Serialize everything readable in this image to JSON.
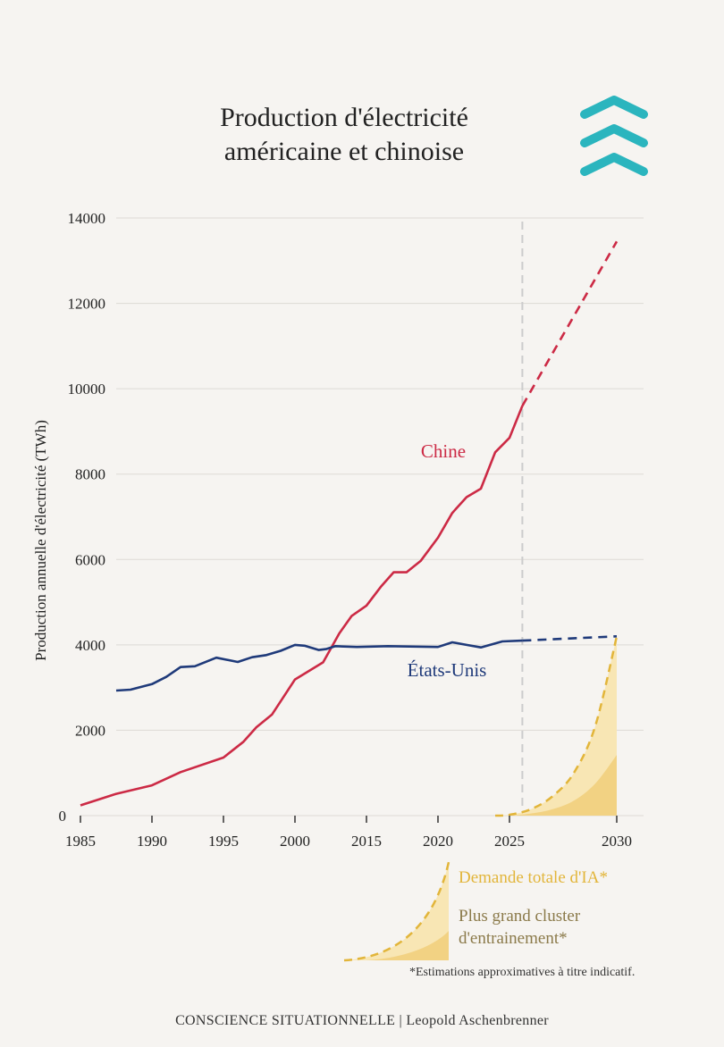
{
  "title_line1": "Production d'électricité",
  "title_line2": "américaine et chinoise",
  "logo_icon": "triple-chevron-up-icon",
  "footnote": "*Estimations approximatives à titre indicatif.",
  "footer": "CONSCIENCE SITUATIONNELLE | Leopold Aschenbrenner",
  "colors": {
    "china": "#cc2a45",
    "usa": "#1f3a7a",
    "ai": "#e2b53a",
    "ai_fill_light": "#f8e6b4",
    "ai_fill_dark": "#f2d283",
    "logo": "#2bb5be",
    "grid": "#dddad5",
    "divider": "#cccccc"
  },
  "chart_data": {
    "type": "line",
    "ylabel": "Production annuelle d'électricité (TWh)",
    "xlabel": "",
    "ylim": [
      0,
      14000
    ],
    "yticks": [
      0,
      2000,
      4000,
      6000,
      8000,
      10000,
      12000,
      14000
    ],
    "xticks": [
      1985,
      1990,
      1995,
      2000,
      2015,
      2020,
      2025,
      2030
    ],
    "grid": true,
    "projection_start": 2025.6,
    "series": [
      {
        "name": "Chine",
        "key": "china",
        "values": [
          [
            1985,
            240
          ],
          [
            1987.5,
            510
          ],
          [
            1990,
            710
          ],
          [
            1992,
            1020
          ],
          [
            1995,
            1360
          ],
          [
            1996.4,
            1730
          ],
          [
            1997.3,
            2070
          ],
          [
            1998.4,
            2370
          ],
          [
            2000,
            3190
          ],
          [
            2005.9,
            3590
          ],
          [
            2009.3,
            4270
          ],
          [
            2011.9,
            4680
          ],
          [
            2015,
            4920
          ],
          [
            2016,
            5360
          ],
          [
            2016.9,
            5700
          ],
          [
            2017.8,
            5700
          ],
          [
            2018.8,
            5970
          ],
          [
            2020,
            6510
          ],
          [
            2021,
            7090
          ],
          [
            2022,
            7460
          ],
          [
            2023,
            7660
          ],
          [
            2024,
            8510
          ],
          [
            2025,
            8850
          ],
          [
            2025.6,
            9600
          ]
        ],
        "projection": [
          [
            2025.6,
            9600
          ],
          [
            2030,
            13450
          ]
        ]
      },
      {
        "name": "États-Unis",
        "key": "usa",
        "values": [
          [
            1987.5,
            2930
          ],
          [
            1988.5,
            2950
          ],
          [
            1990,
            3080
          ],
          [
            1991,
            3250
          ],
          [
            1992,
            3480
          ],
          [
            1993,
            3500
          ],
          [
            1994.5,
            3700
          ],
          [
            1996,
            3600
          ],
          [
            1997,
            3710
          ],
          [
            1998,
            3760
          ],
          [
            1999,
            3860
          ],
          [
            2000,
            4000
          ],
          [
            2002,
            3980
          ],
          [
            2005,
            3880
          ],
          [
            2006.5,
            3900
          ],
          [
            2008.5,
            3970
          ],
          [
            2013,
            3950
          ],
          [
            2016.5,
            3970
          ],
          [
            2020,
            3950
          ],
          [
            2021,
            4060
          ],
          [
            2022,
            4000
          ],
          [
            2023,
            3940
          ],
          [
            2024.5,
            4080
          ],
          [
            2025.6,
            4100
          ]
        ],
        "projection": [
          [
            2025.6,
            4100
          ],
          [
            2030,
            4200
          ]
        ]
      },
      {
        "name": "Demande totale d'IA*",
        "key": "ai_demand",
        "values": [
          [
            2024,
            0
          ],
          [
            2025,
            20
          ],
          [
            2026,
            150
          ],
          [
            2027,
            450
          ],
          [
            2028,
            1000
          ],
          [
            2029,
            2100
          ],
          [
            2030,
            4200
          ]
        ]
      },
      {
        "name": "Plus grand cluster d'entrainement*",
        "key": "ai_cluster",
        "values": [
          [
            2025,
            0
          ],
          [
            2026,
            50
          ],
          [
            2027,
            150
          ],
          [
            2028,
            350
          ],
          [
            2029,
            750
          ],
          [
            2030,
            1420
          ]
        ]
      }
    ],
    "legend": {
      "placement": "bottom-right",
      "demand_label": "Demande totale d'IA*",
      "cluster_line1": "Plus grand cluster",
      "cluster_line2": "d'entrainement*"
    }
  }
}
